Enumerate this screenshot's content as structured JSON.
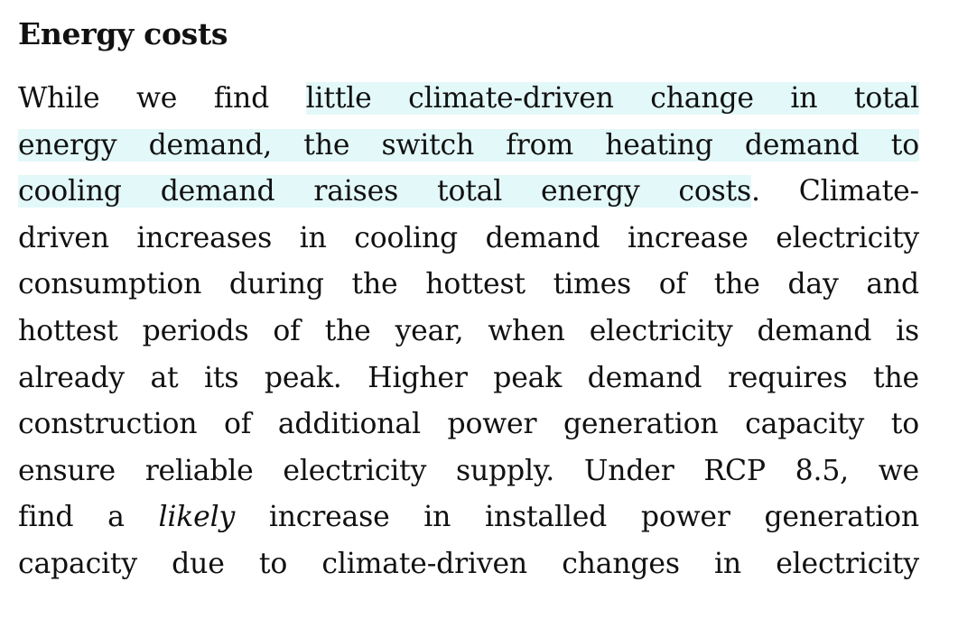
{
  "section": {
    "heading": "Energy costs"
  },
  "paragraph": {
    "lines": [
      {
        "pre": "While we find ",
        "hl": "little climate-driven change in total",
        "post": ""
      },
      {
        "pre": "",
        "hl": "energy demand, the switch from heating demand to",
        "post": ""
      },
      {
        "pre": "",
        "hl": "cooling demand raises total energy costs",
        "post": ". Climate-"
      },
      {
        "text": "driven increases in cooling demand increase electricity"
      },
      {
        "text": "consumption during the hottest times of the day and"
      },
      {
        "text": "hottest periods of the year, when electricity demand is"
      },
      {
        "text": "already at its peak. Higher peak demand requires the"
      },
      {
        "text": "construction of additional power generation capacity to"
      },
      {
        "text": "ensure reliable electricity supply.  Under RCP 8.5, we"
      },
      {
        "pre": "find a ",
        "em": "likely",
        "post": " increase in installed power generation"
      },
      {
        "text": "capacity due to climate-driven changes in electricity"
      }
    ]
  },
  "colors": {
    "highlight": "#e3f8f8",
    "text": "#111111",
    "background": "#ffffff"
  }
}
